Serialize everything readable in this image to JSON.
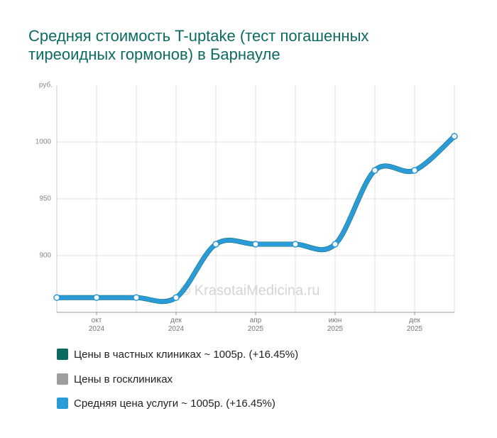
{
  "chart_data": {
    "type": "line",
    "title": [
      "Средняя стоимость T-uptake (тест погашенных",
      "тиреоидных гормонов) в Барнауле"
    ],
    "y_unit": "руб.",
    "watermark": "© KrasotaiMedicina.ru",
    "categories": [
      null,
      "окт 2024",
      null,
      "дек 2024",
      null,
      "апр 2025",
      null,
      "июн 2025",
      null,
      "дек 2025",
      null
    ],
    "series": [
      {
        "name": "Цены в частных клиниках ~ 1005р. (+16.45%)",
        "color": "#0c6b60",
        "values": [
          863,
          863,
          863,
          863,
          910,
          910,
          910,
          910,
          975,
          975,
          1005
        ]
      },
      {
        "name": "Цены в госклиниках",
        "color": "#9e9e9e",
        "values": [
          null,
          null,
          null,
          null,
          null,
          null,
          null,
          null,
          null,
          null,
          null
        ]
      },
      {
        "name": "Средняя цена услуги ~ 1005р. (+16.45%)",
        "color": "#2a9ad8",
        "values": [
          863,
          863,
          863,
          863,
          910,
          910,
          910,
          910,
          975,
          975,
          1005
        ]
      }
    ],
    "ylim": [
      850,
      1050
    ],
    "yticks": [
      900,
      950,
      1000
    ],
    "grid": true
  }
}
